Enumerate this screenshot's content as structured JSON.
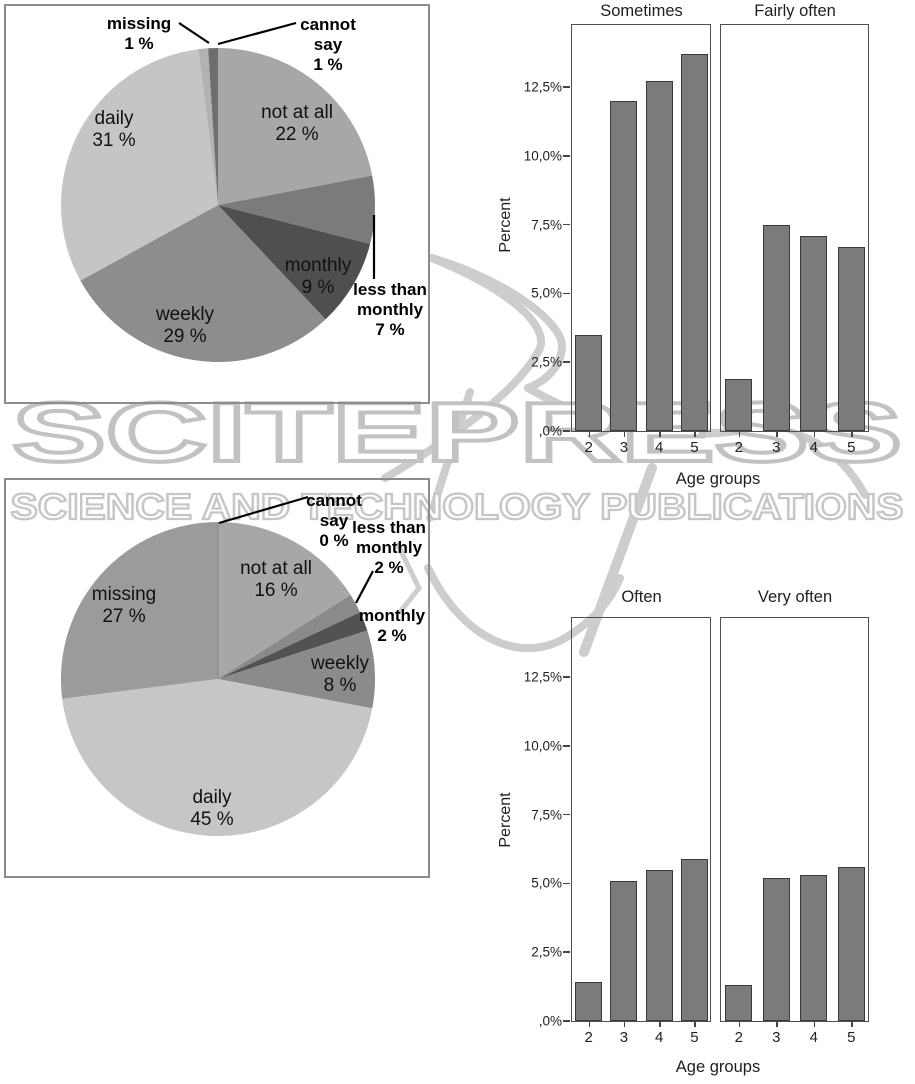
{
  "watermark": {
    "brand_text": "SCITEPRESS",
    "tagline_text": "SCIENCE AND TECHNOLOGY PUBLICATIONS",
    "color": "#c6c6c6"
  },
  "chart_data": [
    {
      "id": "pie-top",
      "type": "pie",
      "slices": [
        {
          "label": "not at all",
          "value_pct": 22,
          "color": "#a7a7a7",
          "display": [
            "not at all",
            "22 %"
          ],
          "placement": "inside"
        },
        {
          "label": "less than monthly",
          "value_pct": 7,
          "color": "#7b7b7b",
          "display": [
            "less than",
            "monthly",
            "7 %"
          ],
          "placement": "outside"
        },
        {
          "label": "monthly",
          "value_pct": 9,
          "color": "#4f4f4f",
          "display": [
            "monthly",
            "9 %"
          ],
          "placement": "inside"
        },
        {
          "label": "weekly",
          "value_pct": 29,
          "color": "#8d8d8d",
          "display": [
            "weekly",
            "29 %"
          ],
          "placement": "inside"
        },
        {
          "label": "daily",
          "value_pct": 31,
          "color": "#c5c5c5",
          "display": [
            "daily",
            "31 %"
          ],
          "placement": "inside"
        },
        {
          "label": "missing",
          "value_pct": 1,
          "color": "#b2b2b2",
          "display": [
            "missing",
            "1 %"
          ],
          "placement": "outside"
        },
        {
          "label": "cannot say",
          "value_pct": 1,
          "color": "#6e6e6e",
          "display": [
            "cannot",
            "say",
            "1 %"
          ],
          "placement": "outside"
        }
      ]
    },
    {
      "id": "pie-bottom",
      "type": "pie",
      "slices": [
        {
          "label": "not at all",
          "value_pct": 16,
          "color": "#a7a7a7",
          "display": [
            "not at all",
            "16 %"
          ],
          "placement": "inside"
        },
        {
          "label": "less than monthly",
          "value_pct": 2,
          "color": "#8a8a8a",
          "display": [
            "less than",
            "monthly",
            "2 %"
          ],
          "placement": "outside"
        },
        {
          "label": "monthly",
          "value_pct": 2,
          "color": "#525252",
          "display": [
            "monthly",
            "2 %"
          ],
          "placement": "outside"
        },
        {
          "label": "weekly",
          "value_pct": 8,
          "color": "#8b8b8b",
          "display": [
            "weekly",
            "8 %"
          ],
          "placement": "inside"
        },
        {
          "label": "daily",
          "value_pct": 45,
          "color": "#c6c6c6",
          "display": [
            "daily",
            "45 %"
          ],
          "placement": "inside"
        },
        {
          "label": "missing",
          "value_pct": 27,
          "color": "#9b9b9b",
          "display": [
            "missing",
            "27 %"
          ],
          "placement": "inside"
        },
        {
          "label": "cannot say",
          "value_pct": 0,
          "color": "#6e6e6e",
          "display": [
            "cannot",
            "say",
            "0 %"
          ],
          "placement": "outside"
        }
      ]
    },
    {
      "id": "bars-top",
      "type": "bar",
      "categories": [
        "2",
        "3",
        "4",
        "5"
      ],
      "series": [
        {
          "name": "Sometimes",
          "values": [
            3.5,
            12.0,
            12.7,
            13.7
          ]
        },
        {
          "name": "Fairly often",
          "values": [
            1.9,
            7.5,
            7.1,
            6.7
          ]
        }
      ],
      "xlabel": "Age groups",
      "ylabel": "Percent",
      "ytick_labels": [
        "12,5%",
        "10,0%",
        "7,5%",
        "5,0%",
        "2,5%",
        ",0%"
      ],
      "ytick_values": [
        12.5,
        10.0,
        7.5,
        5.0,
        2.5,
        0
      ],
      "ylim": [
        0,
        14.8
      ],
      "bar_color": "#7b7b7b"
    },
    {
      "id": "bars-bottom",
      "type": "bar",
      "categories": [
        "2",
        "3",
        "4",
        "5"
      ],
      "series": [
        {
          "name": "Often",
          "values": [
            1.4,
            5.1,
            5.5,
            5.9
          ]
        },
        {
          "name": "Very often",
          "values": [
            1.3,
            5.2,
            5.3,
            5.6
          ]
        }
      ],
      "xlabel": "Age groups",
      "ylabel": "Percent",
      "ytick_labels": [
        "12,5%",
        "10,0%",
        "7,5%",
        "5,0%",
        "2,5%",
        ",0%"
      ],
      "ytick_values": [
        12.5,
        10.0,
        7.5,
        5.0,
        2.5,
        0
      ],
      "ylim": [
        0,
        14.8
      ],
      "bar_color": "#7b7b7b"
    }
  ]
}
